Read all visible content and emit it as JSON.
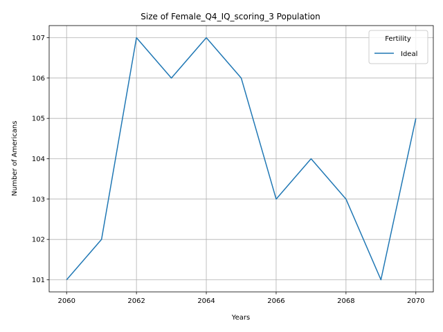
{
  "chart_data": {
    "type": "line",
    "title": "Size of Female_Q4_IQ_scoring_3 Population",
    "xlabel": "Years",
    "ylabel": "Number of Americans",
    "x": [
      2060,
      2061,
      2062,
      2063,
      2064,
      2065,
      2066,
      2067,
      2068,
      2069,
      2070
    ],
    "series": [
      {
        "name": "Ideal",
        "color": "#1f77b4",
        "values": [
          101,
          102,
          107,
          106,
          107,
          106,
          103,
          104,
          103,
          101,
          105
        ]
      }
    ],
    "xticks": [
      "2060",
      "2062",
      "2064",
      "2066",
      "2068",
      "2070"
    ],
    "yticks": [
      "101",
      "102",
      "103",
      "104",
      "105",
      "106",
      "107"
    ],
    "xlim": [
      2059.5,
      2070.5
    ],
    "ylim": [
      100.7,
      107.3
    ],
    "grid": true,
    "legend": {
      "title": "Fertility",
      "placement": "top-right"
    }
  }
}
